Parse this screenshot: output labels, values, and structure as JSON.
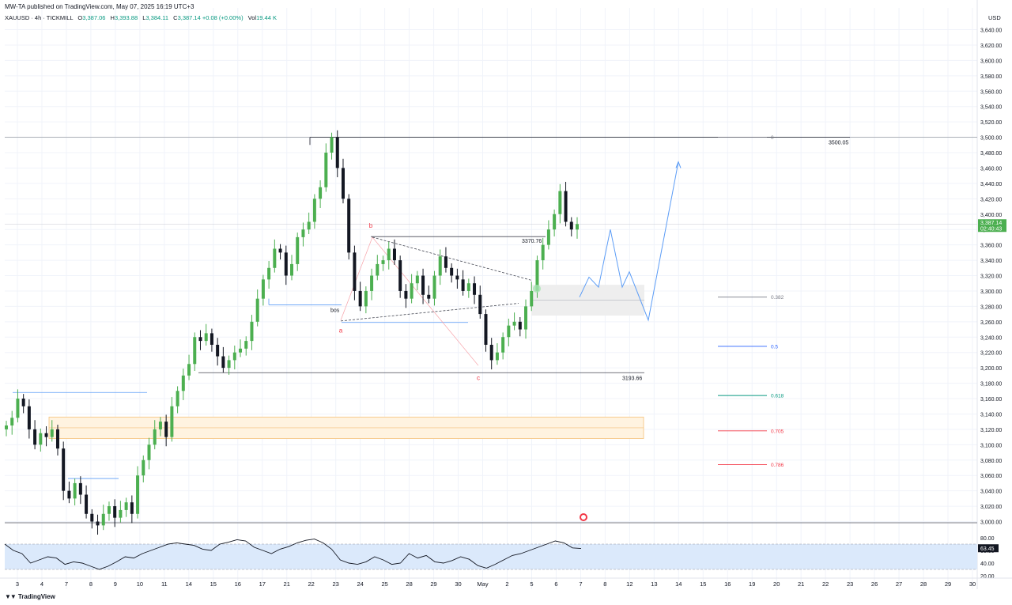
{
  "header": {
    "publish_line": "MW-TA published on TradingView.com, May 07, 2025 16:19 UTC+3"
  },
  "symbol_bar": {
    "symbol": "XAUUSD · 4h · TICKMILL",
    "o_label": "O",
    "o_value": "3,387.06",
    "h_label": "H",
    "h_value": "3,393.88",
    "l_label": "L",
    "l_value": "3,384.11",
    "c_label": "C",
    "c_value": "3,387.14",
    "change": "+0.08 (+0.00%)",
    "vol_label": "Vol",
    "vol_value": "19.44 K"
  },
  "currency": "USD",
  "price_axis": {
    "labels": [
      "3,640.00",
      "3,620.00",
      "3,600.00",
      "3,580.00",
      "3,560.00",
      "3,540.00",
      "3,520.00",
      "3,500.00",
      "3,480.00",
      "3,460.00",
      "3,440.00",
      "3,420.00",
      "3,400.00",
      "3,380.00",
      "3,360.00",
      "3,340.00",
      "3,320.00",
      "3,300.00",
      "3,280.00",
      "3,260.00",
      "3,240.00",
      "3,220.00",
      "3,200.00",
      "3,180.00",
      "3,160.00",
      "3,140.00",
      "3,120.00",
      "3,100.00",
      "3,080.00",
      "3,060.00",
      "3,040.00",
      "3,020.00",
      "3,000.00"
    ],
    "current_price": "3,387.14",
    "countdown": "02:40:43"
  },
  "rsi_axis": {
    "labels": [
      "80.00",
      "60.00",
      "40.00",
      "20.00"
    ],
    "current": "63.45"
  },
  "time_axis": {
    "labels": [
      "3",
      "4",
      "7",
      "8",
      "9",
      "10",
      "11",
      "14",
      "15",
      "16",
      "17",
      "21",
      "22",
      "23",
      "24",
      "25",
      "28",
      "29",
      "30",
      "May",
      "2",
      "5",
      "6",
      "7",
      "8",
      "12",
      "13",
      "14",
      "15",
      "16",
      "19",
      "20",
      "21",
      "22",
      "23",
      "26",
      "27",
      "28",
      "29",
      "30"
    ]
  },
  "annotations": {
    "fib_labels": [
      "0",
      "0.382",
      "0.5",
      "0.618",
      "0.705",
      "0.786"
    ],
    "fib_colors": [
      "#787b86",
      "#787b86",
      "#2962ff",
      "#089981",
      "#f23645",
      "#f23645"
    ],
    "high_label": "3500.05",
    "mid_label": "3370.76",
    "low_label": "3193.66",
    "wave_a": "a",
    "wave_b": "b",
    "wave_c": "c",
    "bos": "bos"
  },
  "colors": {
    "up": "#4caf50",
    "down": "#131722",
    "projection": "#5b9cf6",
    "rsi": "#131722",
    "rsi_band": "#dbe9fb"
  },
  "chart_data": {
    "type": "candlestick",
    "instrument": "XAUUSD",
    "timeframe": "4h",
    "ylim": [
      3000,
      3650
    ],
    "key_levels": {
      "high": 3500.05,
      "mid": 3370.76,
      "low": 3193.66
    },
    "last": {
      "open": 3387.06,
      "high": 3393.88,
      "low": 3384.11,
      "close": 3387.14
    },
    "closes": [
      3125,
      3135,
      3160,
      3150,
      3120,
      3100,
      3115,
      3110,
      3120,
      3095,
      3040,
      3030,
      3050,
      3035,
      3010,
      3000,
      2995,
      3010,
      3020,
      3005,
      3015,
      3025,
      3010,
      3060,
      3080,
      3100,
      3120,
      3130,
      3110,
      3150,
      3170,
      3190,
      3205,
      3240,
      3235,
      3245,
      3230,
      3215,
      3200,
      3210,
      3220,
      3225,
      3235,
      3260,
      3290,
      3315,
      3330,
      3355,
      3350,
      3320,
      3335,
      3370,
      3380,
      3390,
      3420,
      3435,
      3480,
      3500,
      3460,
      3420,
      3350,
      3300,
      3280,
      3300,
      3320,
      3335,
      3340,
      3355,
      3340,
      3300,
      3290,
      3310,
      3320,
      3295,
      3290,
      3320,
      3345,
      3330,
      3320,
      3315,
      3300,
      3310,
      3295,
      3270,
      3230,
      3210,
      3220,
      3240,
      3255,
      3260,
      3250,
      3280,
      3300,
      3340,
      3360,
      3380,
      3400,
      3430,
      3390,
      3380,
      3387
    ],
    "rsi": {
      "ylim": [
        20,
        90
      ],
      "current": 63.45,
      "upper": 70,
      "lower": 30
    }
  }
}
